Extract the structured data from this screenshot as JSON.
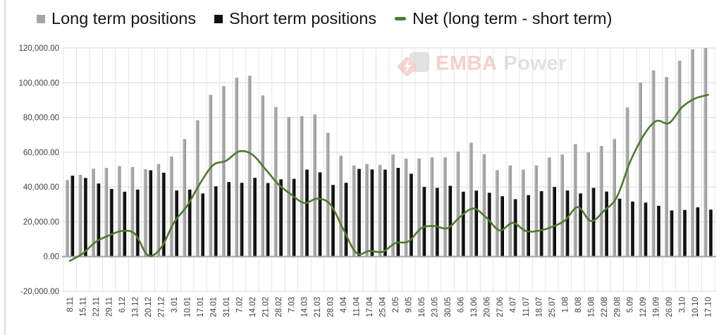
{
  "legend": {
    "items": [
      {
        "label": "Long term positions",
        "marker": "square",
        "color": "#a6a6a6"
      },
      {
        "label": "Short term positions",
        "marker": "square",
        "color": "#111111"
      },
      {
        "label": "Net (long term - short term)",
        "marker": "dash",
        "color": "#4e7b2d"
      }
    ]
  },
  "watermark": {
    "brand_primary": "EMBA",
    "brand_secondary": "Power"
  },
  "chart_data": {
    "type": "bar",
    "title": "",
    "xlabel": "",
    "ylabel": "",
    "grid": true,
    "legend_position": "top",
    "ylim": [
      -20000,
      120000
    ],
    "y_tick_step": 20000,
    "y_ticks": [
      {
        "value": -20000,
        "label": "-20,000.00"
      },
      {
        "value": 0,
        "label": "0.00"
      },
      {
        "value": 20000,
        "label": "20,000.00"
      },
      {
        "value": 40000,
        "label": "40,000.00"
      },
      {
        "value": 60000,
        "label": "60,000.00"
      },
      {
        "value": 80000,
        "label": "80,000.00"
      },
      {
        "value": 100000,
        "label": "100,000.00"
      },
      {
        "value": 120000,
        "label": "120,000.00"
      }
    ],
    "categories": [
      "8.11",
      "15.11",
      "22.11",
      "29.11",
      "6.12",
      "13.12",
      "20.12",
      "27.12",
      "3.01",
      "10.01",
      "17.01",
      "24.01",
      "31.01",
      "7.02",
      "14.02",
      "21.02",
      "28.02",
      "7.03",
      "14.03",
      "21.03",
      "28.03",
      "4.04",
      "11.04",
      "17.04",
      "25.04",
      "2.05",
      "9.05",
      "16.05",
      "23.05",
      "30.05",
      "6.06",
      "13.06",
      "20.06",
      "27.06",
      "4.07",
      "11.07",
      "18.07",
      "25.07",
      "1.08",
      "8.08",
      "15.08",
      "22.08",
      "29.08",
      "5.09",
      "12.09",
      "19.09",
      "26.09",
      "3.10",
      "10.10",
      "17.10"
    ],
    "series": [
      {
        "name": "Long term positions",
        "type": "bar",
        "color": "#a6a6a6",
        "values": [
          44000,
          47000,
          50500,
          51000,
          52000,
          51500,
          50300,
          53200,
          57600,
          67600,
          78400,
          93000,
          98000,
          102900,
          104000,
          92700,
          86000,
          80300,
          80800,
          81700,
          71200,
          58000,
          52400,
          53300,
          52700,
          58700,
          56300,
          56400,
          57000,
          57000,
          60400,
          65500,
          58900,
          49700,
          52400,
          50000,
          52400,
          57000,
          58700,
          64700,
          59900,
          63600,
          67600,
          85800,
          100100,
          107100,
          103300,
          112700,
          119200,
          120000
        ]
      },
      {
        "name": "Short term positions",
        "type": "bar",
        "color": "#111111",
        "values": [
          46500,
          45200,
          42000,
          38900,
          37300,
          38500,
          49600,
          48200,
          38000,
          38500,
          36300,
          40400,
          42900,
          42400,
          45300,
          42300,
          44400,
          44700,
          50000,
          48400,
          41200,
          42400,
          50400,
          50100,
          50000,
          51000,
          47600,
          40000,
          39500,
          40700,
          37300,
          37900,
          36700,
          34700,
          33000,
          35300,
          37600,
          40000,
          38000,
          36300,
          39500,
          37400,
          33300,
          31600,
          31000,
          29200,
          26500,
          26800,
          28300,
          27000
        ]
      },
      {
        "name": "Net (long term - short term)",
        "type": "line",
        "color": "#4e7b2d",
        "values": [
          -2500,
          1800,
          8500,
          12100,
          14700,
          13000,
          700,
          5000,
          19600,
          29100,
          42100,
          52600,
          55100,
          60500,
          58700,
          50400,
          41600,
          35600,
          30800,
          33300,
          30000,
          15600,
          2000,
          3200,
          2700,
          7700,
          8700,
          16400,
          17500,
          16300,
          23100,
          27600,
          22200,
          15000,
          19400,
          14700,
          14800,
          17000,
          20700,
          28400,
          20400,
          26200,
          34300,
          54200,
          69100,
          77900,
          76800,
          85900,
          90900,
          93000
        ]
      }
    ],
    "grid_color": "#d9d9d9",
    "vertical_grid_color": "#e4e4e4",
    "axis_line_color": "#a6a6a6",
    "tick_label_color": "#404040"
  }
}
